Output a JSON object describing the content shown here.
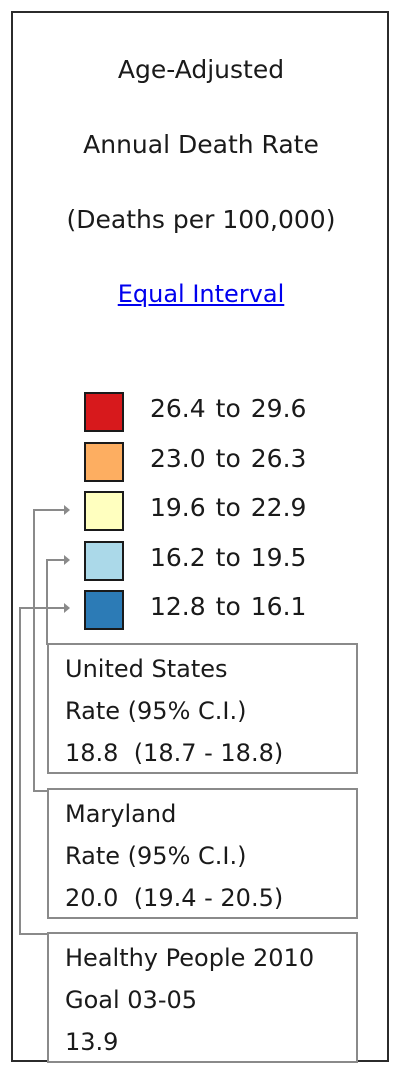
{
  "legend": {
    "title_lines": [
      "Age-Adjusted",
      "Annual Death Rate",
      "(Deaths per 100,000)"
    ],
    "method_link": "Equal Interval",
    "classes": [
      {
        "from": "26.4",
        "sep": "to",
        "to": "29.6",
        "color": "#d7191c"
      },
      {
        "from": "23.0",
        "sep": "to",
        "to": "26.3",
        "color": "#fdae61"
      },
      {
        "from": "19.6",
        "sep": "to",
        "to": "22.9",
        "color": "#ffffbf"
      },
      {
        "from": "16.2",
        "sep": "to",
        "to": "19.5",
        "color": "#abd9e9"
      },
      {
        "from": "12.8",
        "sep": "to",
        "to": "16.1",
        "color": "#2c7bb6"
      }
    ]
  },
  "reference_boxes": {
    "united_states": {
      "name": "United States",
      "label": "Rate (95% C.I.)",
      "value": "18.8  (18.7 - 18.8)"
    },
    "maryland": {
      "name": "Maryland",
      "label": "Rate (95% C.I.)",
      "value": "20.0  (19.4 - 20.5)"
    },
    "healthy_people": {
      "name": "Healthy People 2010",
      "label": "Goal 03-05",
      "value": "13.9"
    }
  },
  "colors": {
    "connector": "#8a8a8a",
    "link": "#0000ee",
    "frame": "#2b2b2b"
  }
}
